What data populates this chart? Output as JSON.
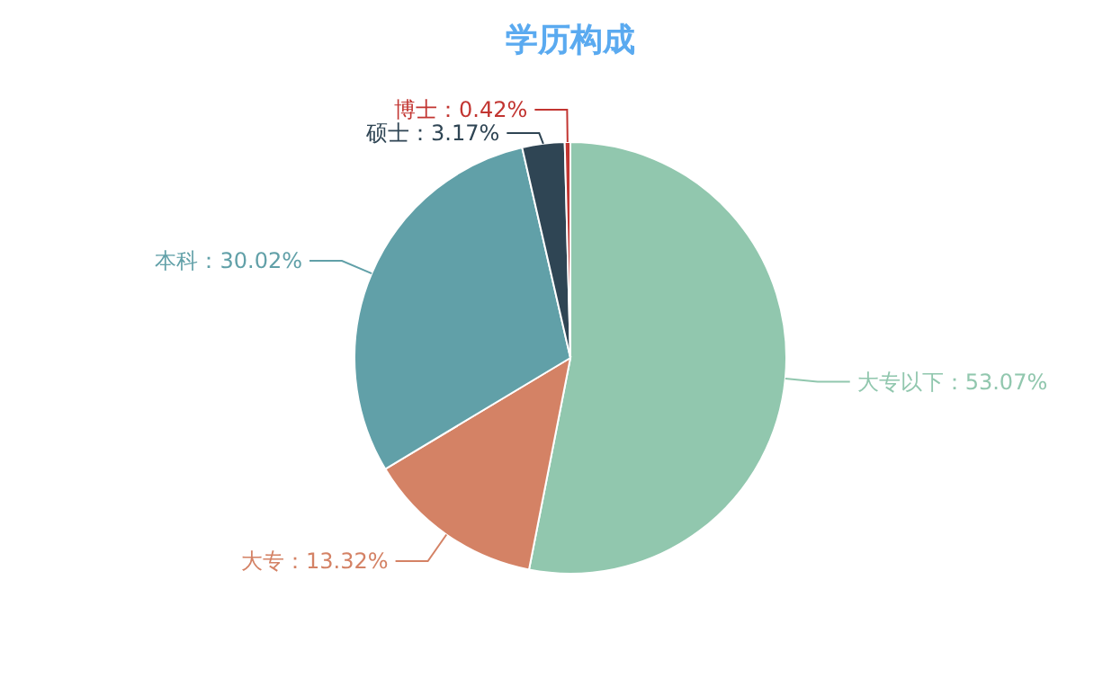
{
  "chart_data": {
    "type": "pie",
    "title": "学历构成",
    "categories": [
      "大专以下",
      "大专",
      "本科",
      "硕士",
      "博士"
    ],
    "values": [
      53.07,
      13.32,
      30.02,
      3.17,
      0.42
    ],
    "value_labels": [
      "53.07%",
      "13.32%",
      "30.02%",
      "3.17%",
      "0.42%"
    ],
    "colors": [
      "#91c7ae",
      "#d48265",
      "#61a0a8",
      "#2f4554",
      "#c23531"
    ]
  }
}
